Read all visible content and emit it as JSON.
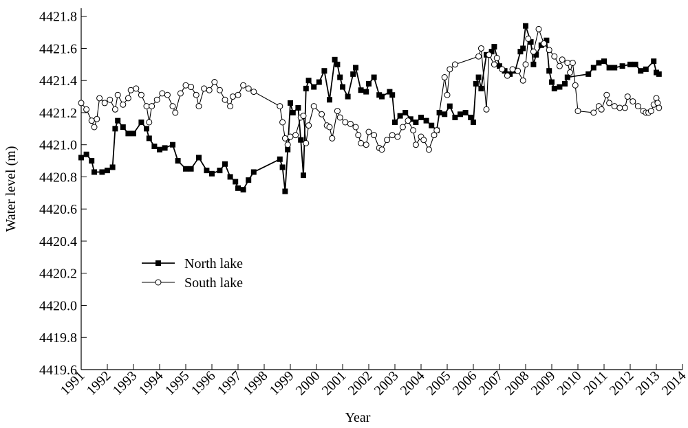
{
  "chart_data": {
    "type": "line",
    "xlabel": "Year",
    "ylabel": "Water level (m)",
    "xlim": [
      1991,
      2014
    ],
    "xticks": [
      1991,
      1992,
      1993,
      1994,
      1995,
      1996,
      1997,
      1998,
      1999,
      2000,
      2001,
      2002,
      2003,
      2004,
      2005,
      2006,
      2007,
      2008,
      2009,
      2010,
      2011,
      2012,
      2013,
      2014
    ],
    "ylim": [
      4419.6,
      4421.85
    ],
    "yticks": [
      4419.6,
      4419.8,
      {
        "value": 4420,
        "label": "4420.0"
      },
      4420.2,
      4420.4,
      4420.6,
      4420.8,
      {
        "value": 4421,
        "label": "4421.0"
      },
      4421.2,
      4421.4,
      4421.6,
      4421.8
    ],
    "legend": "center left",
    "series": [
      {
        "name": "North lake",
        "color": "#000000",
        "marker": "square",
        "x": [
          1991.0,
          1991.2,
          1991.4,
          1991.5,
          1991.8,
          1992.0,
          1992.2,
          1992.3,
          1992.4,
          1992.6,
          1992.8,
          1993.0,
          1993.3,
          1993.5,
          1993.6,
          1993.8,
          1994.0,
          1994.2,
          1994.5,
          1994.7,
          1995.0,
          1995.2,
          1995.5,
          1995.8,
          1996.0,
          1996.3,
          1996.5,
          1996.7,
          1996.9,
          1997.0,
          1997.2,
          1997.4,
          1997.6,
          1998.6,
          1998.7,
          1998.8,
          1998.9,
          1999.0,
          1999.1,
          1999.3,
          1999.4,
          1999.5,
          1999.6,
          1999.7,
          1999.9,
          2000.1,
          2000.3,
          2000.5,
          2000.7,
          2000.8,
          2000.9,
          2001.0,
          2001.2,
          2001.4,
          2001.5,
          2001.7,
          2001.9,
          2002.0,
          2002.2,
          2002.4,
          2002.5,
          2002.8,
          2002.9,
          2003.0,
          2003.2,
          2003.4,
          2003.6,
          2003.8,
          2004.0,
          2004.2,
          2004.4,
          2004.6,
          2004.7,
          2004.9,
          2005.1,
          2005.3,
          2005.5,
          2005.7,
          2005.9,
          2006.0,
          2006.1,
          2006.2,
          2006.3,
          2006.5,
          2006.7,
          2006.8,
          2007.0,
          2007.2,
          2007.4,
          2007.6,
          2007.8,
          2007.9,
          2008.0,
          2008.2,
          2008.3,
          2008.4,
          2008.6,
          2008.8,
          2008.9,
          2009.0,
          2009.1,
          2009.3,
          2009.5,
          2009.6,
          2010.4,
          2010.6,
          2010.8,
          2011.0,
          2011.2,
          2011.4,
          2011.7,
          2012.0,
          2012.2,
          2012.4,
          2012.6,
          2012.9,
          2013.0,
          2013.1
        ],
        "values": [
          4420.92,
          4420.94,
          4420.9,
          4420.83,
          4420.83,
          4420.84,
          4420.86,
          4421.1,
          4421.15,
          4421.11,
          4421.07,
          4421.07,
          4421.14,
          4421.1,
          4421.04,
          4420.99,
          4420.97,
          4420.98,
          4421.0,
          4420.9,
          4420.85,
          4420.85,
          4420.92,
          4420.84,
          4420.82,
          4420.84,
          4420.88,
          4420.8,
          4420.77,
          4420.73,
          4420.72,
          4420.78,
          4420.83,
          4420.91,
          4420.86,
          4420.71,
          4420.97,
          4421.26,
          4421.2,
          4421.23,
          4421.03,
          4420.81,
          4421.35,
          4421.4,
          4421.36,
          4421.39,
          4421.46,
          4421.28,
          4421.53,
          4421.5,
          4421.42,
          4421.36,
          4421.3,
          4421.44,
          4421.48,
          4421.34,
          4421.33,
          4421.38,
          4421.42,
          4421.31,
          4421.3,
          4421.33,
          4421.31,
          4421.14,
          4421.18,
          4421.2,
          4421.16,
          4421.14,
          4421.17,
          4421.15,
          4421.12,
          4421.09,
          4421.2,
          4421.19,
          4421.24,
          4421.17,
          4421.19,
          4421.2,
          4421.17,
          4421.14,
          4421.38,
          4421.42,
          4421.35,
          4421.56,
          4421.58,
          4421.61,
          4421.49,
          4421.46,
          4421.44,
          4421.46,
          4421.58,
          4421.6,
          4421.74,
          4421.64,
          4421.5,
          4421.56,
          4421.62,
          4421.65,
          4421.46,
          4421.39,
          4421.35,
          4421.36,
          4421.38,
          4421.42,
          4421.44,
          4421.48,
          4421.51,
          4421.52,
          4421.48,
          4421.48,
          4421.49,
          4421.5,
          4421.5,
          4421.46,
          4421.47,
          4421.52,
          4421.45,
          4421.44
        ]
      },
      {
        "name": "South lake",
        "color": "#000000",
        "marker": "circle",
        "x": [
          1991.0,
          1991.2,
          1991.4,
          1991.5,
          1991.6,
          1991.7,
          1991.9,
          1992.1,
          1992.3,
          1992.4,
          1992.6,
          1992.8,
          1992.9,
          1993.1,
          1993.3,
          1993.5,
          1993.6,
          1993.7,
          1993.9,
          1994.1,
          1994.3,
          1994.5,
          1994.6,
          1994.8,
          1995.0,
          1995.2,
          1995.4,
          1995.5,
          1995.7,
          1995.9,
          1996.1,
          1996.3,
          1996.5,
          1996.7,
          1996.8,
          1997.0,
          1997.2,
          1997.4,
          1997.6,
          1998.6,
          1998.7,
          1998.8,
          1998.9,
          1999.0,
          1999.2,
          1999.4,
          1999.5,
          1999.6,
          1999.7,
          1999.9,
          2000.2,
          2000.4,
          2000.5,
          2000.6,
          2000.8,
          2000.9,
          2001.1,
          2001.3,
          2001.5,
          2001.6,
          2001.7,
          2001.9,
          2002.0,
          2002.2,
          2002.4,
          2002.5,
          2002.7,
          2002.9,
          2003.1,
          2003.3,
          2003.5,
          2003.7,
          2003.8,
          2004.0,
          2004.1,
          2004.3,
          2004.5,
          2004.6,
          2004.9,
          2005.0,
          2005.1,
          2005.3,
          2006.2,
          2006.3,
          2006.5,
          2006.6,
          2006.8,
          2006.9,
          2007.1,
          2007.3,
          2007.5,
          2007.7,
          2007.9,
          2008.0,
          2008.1,
          2008.3,
          2008.5,
          2008.7,
          2008.9,
          2009.1,
          2009.3,
          2009.4,
          2009.6,
          2009.7,
          2009.8,
          2009.9,
          2010.0,
          2010.6,
          2010.8,
          2010.9,
          2011.1,
          2011.2,
          2011.4,
          2011.6,
          2011.8,
          2011.9,
          2012.1,
          2012.3,
          2012.5,
          2012.6,
          2012.7,
          2012.8,
          2012.9,
          2013.0,
          2013.05,
          2013.1
        ],
        "values": [
          4421.26,
          4421.22,
          4421.15,
          4421.11,
          4421.16,
          4421.29,
          4421.26,
          4421.28,
          4421.22,
          4421.31,
          4421.25,
          4421.29,
          4421.34,
          4421.35,
          4421.31,
          4421.24,
          4421.14,
          4421.24,
          4421.28,
          4421.32,
          4421.31,
          4421.24,
          4421.2,
          4421.32,
          4421.37,
          4421.36,
          4421.31,
          4421.24,
          4421.35,
          4421.34,
          4421.39,
          4421.34,
          4421.28,
          4421.24,
          4421.3,
          4421.31,
          4421.37,
          4421.35,
          4421.33,
          4421.24,
          4421.14,
          4421.04,
          4421.0,
          4421.05,
          4421.06,
          4421.17,
          4421.18,
          4421.01,
          4421.12,
          4421.24,
          4421.19,
          4421.12,
          4421.11,
          4421.04,
          4421.21,
          4421.17,
          4421.14,
          4421.13,
          4421.11,
          4421.06,
          4421.01,
          4421.0,
          4421.08,
          4421.06,
          4420.98,
          4420.97,
          4421.03,
          4421.06,
          4421.05,
          4421.11,
          4421.15,
          4421.09,
          4421.0,
          4421.05,
          4421.03,
          4420.97,
          4421.06,
          4421.09,
          4421.42,
          4421.31,
          4421.47,
          4421.5,
          4421.55,
          4421.6,
          4421.22,
          4421.56,
          4421.5,
          4421.54,
          4421.47,
          4421.43,
          4421.47,
          4421.46,
          4421.4,
          4421.5,
          4421.66,
          4421.58,
          4421.72,
          4421.63,
          4421.59,
          4421.55,
          4421.49,
          4421.53,
          4421.51,
          4421.45,
          4421.51,
          4421.37,
          4421.21,
          4421.2,
          4421.24,
          4421.22,
          4421.31,
          4421.26,
          4421.24,
          4421.23,
          4421.23,
          4421.3,
          4421.27,
          4421.24,
          4421.21,
          4421.2,
          4421.2,
          4421.21,
          4421.25,
          4421.29,
          4421.26,
          4421.23
        ]
      }
    ]
  }
}
